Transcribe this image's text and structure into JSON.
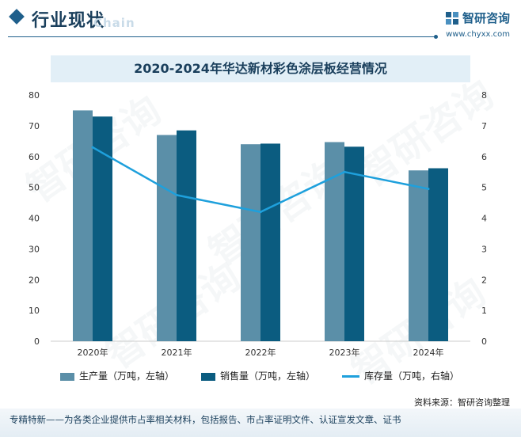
{
  "header": {
    "title": "行业现状",
    "subtitle": "Chain",
    "brand_name": "智研咨询",
    "brand_url": "www.chyxx.com"
  },
  "watermark_text": "智研咨询",
  "colors": {
    "production": "#5b8fa8",
    "sales": "#0b5c80",
    "inventory": "#1ea0dc",
    "title_bg": "#e2eff7"
  },
  "chart_data": {
    "type": "bar",
    "title": "2020-2024年华达新材彩色涂层板经营情况",
    "categories": [
      "2020年",
      "2021年",
      "2022年",
      "2023年",
      "2024年"
    ],
    "series": [
      {
        "name": "生产量（万吨，左轴）",
        "type": "bar",
        "axis": "left",
        "values": [
          75,
          67,
          64,
          64.7,
          55.5
        ]
      },
      {
        "name": "销售量（万吨，左轴）",
        "type": "bar",
        "axis": "left",
        "values": [
          73,
          68.5,
          64.2,
          63.2,
          56.2
        ]
      },
      {
        "name": "库存量（万吨，右轴）",
        "type": "line",
        "axis": "right",
        "values": [
          6.3,
          4.75,
          4.2,
          5.5,
          4.95
        ]
      }
    ],
    "ylim_left": [
      0,
      80
    ],
    "yticks_left": [
      "0",
      "10",
      "20",
      "30",
      "40",
      "50",
      "60",
      "70",
      "80"
    ],
    "ylim_right": [
      0,
      8
    ],
    "yticks_right": [
      "0",
      "1",
      "2",
      "3",
      "4",
      "5",
      "6",
      "7",
      "8"
    ],
    "legend_position": "bottom",
    "grid": false
  },
  "source": "资料来源：智研咨询整理",
  "footer": "专精特新——为各类企业提供市占率相关材料，包括报告、市占率证明文件、认证宣发文章、证书"
}
